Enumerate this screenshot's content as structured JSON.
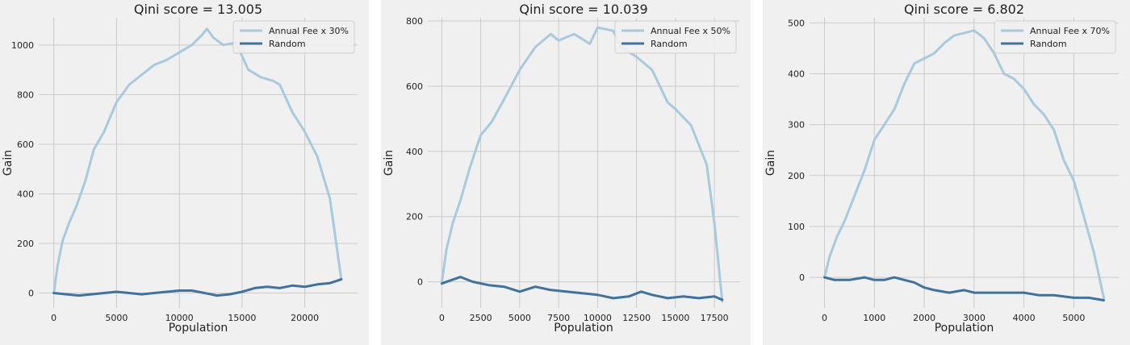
{
  "chart_data": [
    {
      "type": "line",
      "title": "Qini score = 13.005",
      "xlabel": "Population",
      "ylabel": "Gain",
      "xlim": [
        -1200,
        24200
      ],
      "ylim": [
        -60,
        1110
      ],
      "xticks": [
        0,
        5000,
        10000,
        15000,
        20000
      ],
      "yticks": [
        0,
        200,
        400,
        600,
        800,
        1000
      ],
      "grid": true,
      "legend_position": "top-right",
      "colors": {
        "model": "#a9c9dd",
        "random": "#41729c"
      },
      "series": [
        {
          "name": "Annual Fee x 30%",
          "x": [
            0,
            300,
            700,
            1200,
            1800,
            2500,
            3200,
            4000,
            5000,
            6000,
            7000,
            8000,
            9000,
            10000,
            11000,
            11800,
            12200,
            12700,
            13500,
            14500,
            15500,
            16500,
            17500,
            18000,
            19000,
            20000,
            21000,
            22000,
            22500,
            22900
          ],
          "y": [
            0,
            110,
            210,
            280,
            350,
            450,
            580,
            650,
            770,
            840,
            880,
            920,
            940,
            970,
            1000,
            1040,
            1065,
            1030,
            1000,
            1010,
            900,
            870,
            855,
            840,
            730,
            650,
            550,
            380,
            200,
            55
          ]
        },
        {
          "name": "Random",
          "x": [
            0,
            1000,
            2000,
            3000,
            4000,
            5000,
            6000,
            7000,
            8000,
            9000,
            10000,
            11000,
            12000,
            13000,
            14000,
            15000,
            16000,
            17000,
            18000,
            19000,
            20000,
            21000,
            22000,
            22900
          ],
          "y": [
            0,
            -5,
            -10,
            -5,
            0,
            5,
            0,
            -5,
            0,
            5,
            10,
            10,
            0,
            -10,
            -5,
            5,
            20,
            25,
            20,
            30,
            25,
            35,
            40,
            55
          ]
        }
      ]
    },
    {
      "type": "line",
      "title": "Qini score = 10.039",
      "xlabel": "Population",
      "ylabel": "Gain",
      "xlim": [
        -900,
        19100
      ],
      "ylim": [
        -80,
        810
      ],
      "xticks": [
        0,
        2500,
        5000,
        7500,
        10000,
        12500,
        15000,
        17500
      ],
      "yticks": [
        0,
        200,
        400,
        600,
        800
      ],
      "grid": true,
      "legend_position": "top-right",
      "colors": {
        "model": "#a9c9dd",
        "random": "#41729c"
      },
      "series": [
        {
          "name": "Annual Fee x 50%",
          "x": [
            0,
            300,
            700,
            1200,
            1800,
            2500,
            3200,
            4000,
            5000,
            6000,
            7000,
            7500,
            8500,
            9500,
            10000,
            11000,
            11500,
            12500,
            13500,
            14500,
            15000,
            16000,
            17000,
            17500,
            18000
          ],
          "y": [
            0,
            100,
            180,
            250,
            350,
            450,
            490,
            560,
            650,
            720,
            760,
            740,
            760,
            730,
            780,
            770,
            720,
            690,
            650,
            550,
            530,
            480,
            360,
            180,
            -60
          ]
        },
        {
          "name": "Random",
          "x": [
            0,
            600,
            1200,
            2000,
            3000,
            4000,
            5000,
            6000,
            7000,
            8000,
            9000,
            10000,
            11000,
            12000,
            12800,
            13500,
            14500,
            15500,
            16500,
            17500,
            18000
          ],
          "y": [
            -5,
            5,
            15,
            0,
            -10,
            -15,
            -30,
            -15,
            -25,
            -30,
            -35,
            -40,
            -50,
            -45,
            -30,
            -40,
            -50,
            -45,
            -50,
            -45,
            -55
          ]
        }
      ]
    },
    {
      "type": "line",
      "title": "Qini score = 6.802",
      "xlabel": "Population",
      "ylabel": "Gain",
      "xlim": [
        -300,
        5900
      ],
      "ylim": [
        -60,
        510
      ],
      "xticks": [
        0,
        1000,
        2000,
        3000,
        4000,
        5000
      ],
      "yticks": [
        0,
        100,
        200,
        300,
        400,
        500
      ],
      "grid": true,
      "legend_position": "top-right",
      "colors": {
        "model": "#a9c9dd",
        "random": "#41729c"
      },
      "series": [
        {
          "name": "Annual Fee x 70%",
          "x": [
            0,
            100,
            250,
            400,
            600,
            800,
            1000,
            1200,
            1400,
            1600,
            1800,
            2000,
            2200,
            2400,
            2600,
            2800,
            3000,
            3200,
            3400,
            3600,
            3800,
            4000,
            4200,
            4400,
            4600,
            4800,
            5000,
            5200,
            5400,
            5600
          ],
          "y": [
            0,
            40,
            80,
            110,
            160,
            210,
            270,
            300,
            330,
            380,
            420,
            430,
            440,
            460,
            475,
            480,
            485,
            470,
            440,
            400,
            390,
            370,
            340,
            320,
            290,
            230,
            190,
            120,
            50,
            -40
          ]
        },
        {
          "name": "Random",
          "x": [
            0,
            200,
            500,
            800,
            1000,
            1200,
            1400,
            1600,
            1800,
            2000,
            2200,
            2500,
            2800,
            3000,
            3300,
            3600,
            4000,
            4300,
            4600,
            5000,
            5300,
            5600
          ],
          "y": [
            0,
            -5,
            -5,
            0,
            -5,
            -5,
            0,
            -5,
            -10,
            -20,
            -25,
            -30,
            -25,
            -30,
            -30,
            -30,
            -30,
            -35,
            -35,
            -40,
            -40,
            -45
          ]
        }
      ]
    }
  ]
}
